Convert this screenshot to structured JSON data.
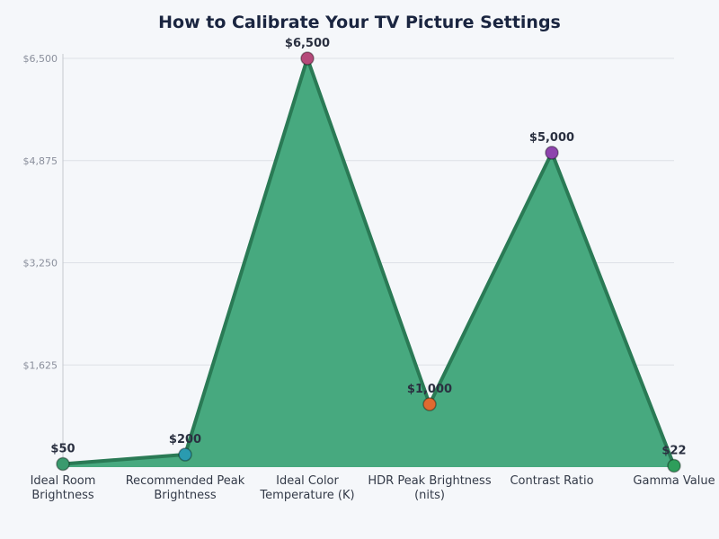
{
  "chart_data": {
    "type": "area",
    "title": "How to Calibrate Your TV Picture Settings",
    "xlabel": "",
    "ylabel": "",
    "categories": [
      "Ideal Room Brightness",
      "Recommended Peak Brightness",
      "Ideal Color Temperature (K)",
      "HDR Peak Brightness (nits)",
      "Contrast Ratio",
      "Gamma Value"
    ],
    "category_lines": [
      [
        "Ideal Room",
        "Brightness"
      ],
      [
        "Recommended Peak",
        "Brightness"
      ],
      [
        "Ideal Color",
        "Temperature (K)"
      ],
      [
        "HDR Peak Brightness",
        "(nits)"
      ],
      [
        "Contrast Ratio"
      ],
      [
        "Gamma Value"
      ]
    ],
    "values": [
      50,
      200,
      6500,
      1000,
      5000,
      22
    ],
    "data_labels": [
      "$50",
      "$200",
      "$6,500",
      "$1,000",
      "$5,000",
      "$22"
    ],
    "marker_colors": [
      "#3a9a6e",
      "#2a9bb0",
      "#b5497a",
      "#e06a30",
      "#8e44ad",
      "#2e9e5b"
    ],
    "yticks": [
      1625,
      3250,
      4875,
      6500
    ],
    "ytick_labels": [
      "$1,625",
      "$3,250",
      "$4,875",
      "$6,500"
    ],
    "ylim": [
      0,
      6500
    ],
    "grid": true,
    "legend": null,
    "colors": {
      "fill": "#47a97f",
      "line": "#2a7a55",
      "grid": "#dde0e6",
      "axis": "#c5c8cf"
    }
  }
}
